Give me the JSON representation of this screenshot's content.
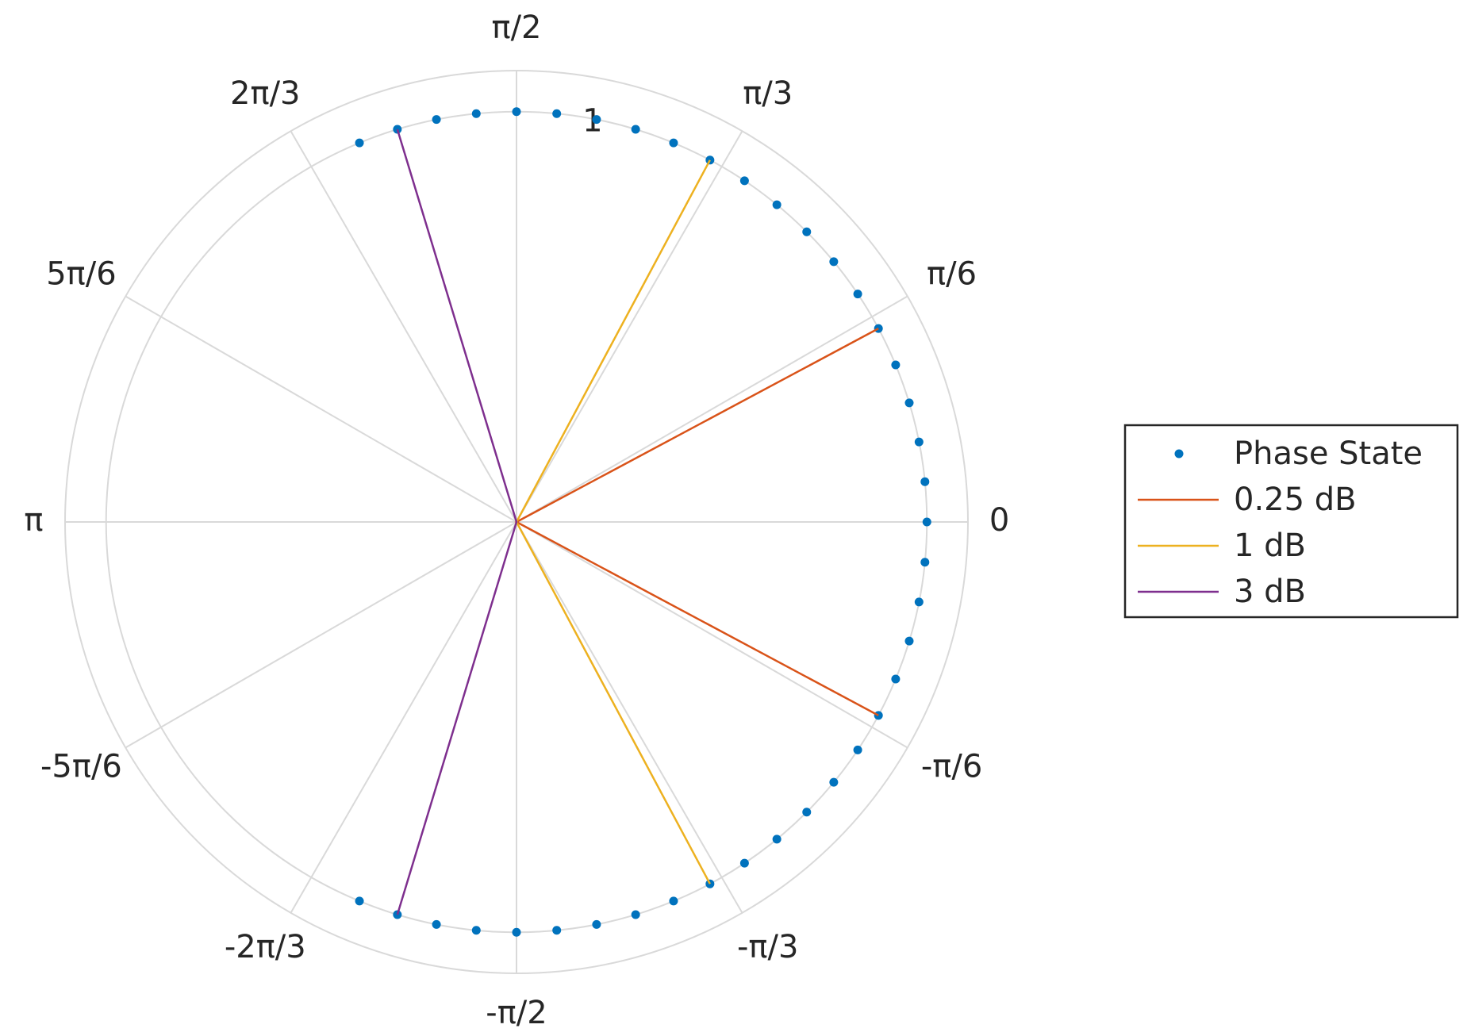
{
  "chart_data": {
    "type": "polar",
    "rlim": [
      0,
      1.1
    ],
    "rticks": [
      1
    ],
    "thetaticks": [
      {
        "value": 0,
        "label": "0"
      },
      {
        "value": 30,
        "label": "π/6"
      },
      {
        "value": 60,
        "label": "π/3"
      },
      {
        "value": 90,
        "label": "π/2"
      },
      {
        "value": 120,
        "label": "2π/3"
      },
      {
        "value": 150,
        "label": "5π/6"
      },
      {
        "value": 180,
        "label": "π"
      },
      {
        "value": -150,
        "label": "-5π/6"
      },
      {
        "value": -120,
        "label": "-2π/3"
      },
      {
        "value": -90,
        "label": "-π/2"
      },
      {
        "value": -60,
        "label": "-π/3"
      },
      {
        "value": -30,
        "label": "-π/6"
      }
    ],
    "grid": true,
    "legend": "right",
    "series": [
      {
        "name": "Phase State",
        "mode": "markers",
        "color": "#0072BD",
        "theta": [
          -112.5,
          -106.875,
          -101.25,
          -95.625,
          -90,
          -84.375,
          -78.75,
          -73.125,
          -67.5,
          -61.875,
          -56.25,
          -50.625,
          -45,
          -39.375,
          -33.75,
          -28.125,
          -22.5,
          -16.875,
          -11.25,
          -5.625,
          0,
          5.625,
          11.25,
          16.875,
          22.5,
          28.125,
          33.75,
          39.375,
          45,
          50.625,
          56.25,
          61.875,
          67.5,
          73.125,
          78.75,
          84.375,
          90,
          95.625,
          101.25,
          106.875,
          112.5
        ],
        "r": [
          1,
          1,
          1,
          1,
          1,
          1,
          1,
          1,
          1,
          1,
          1,
          1,
          1,
          1,
          1,
          1,
          1,
          1,
          1,
          1,
          1,
          1,
          1,
          1,
          1,
          1,
          1,
          1,
          1,
          1,
          1,
          1,
          1,
          1,
          1,
          1,
          1,
          1,
          1,
          1,
          1
        ]
      },
      {
        "name": "0.25 dB",
        "mode": "lines",
        "color": "#D95319",
        "theta": [
          28.125,
          0,
          -28.125
        ],
        "r": [
          1,
          0,
          1
        ]
      },
      {
        "name": "1 dB",
        "mode": "lines",
        "color": "#EDB120",
        "theta": [
          61.875,
          0,
          -61.875
        ],
        "r": [
          1,
          0,
          1
        ]
      },
      {
        "name": "3 dB",
        "mode": "lines",
        "color": "#7E2F8E",
        "theta": [
          106.875,
          0,
          -106.875
        ],
        "r": [
          1,
          0,
          1
        ]
      }
    ]
  }
}
